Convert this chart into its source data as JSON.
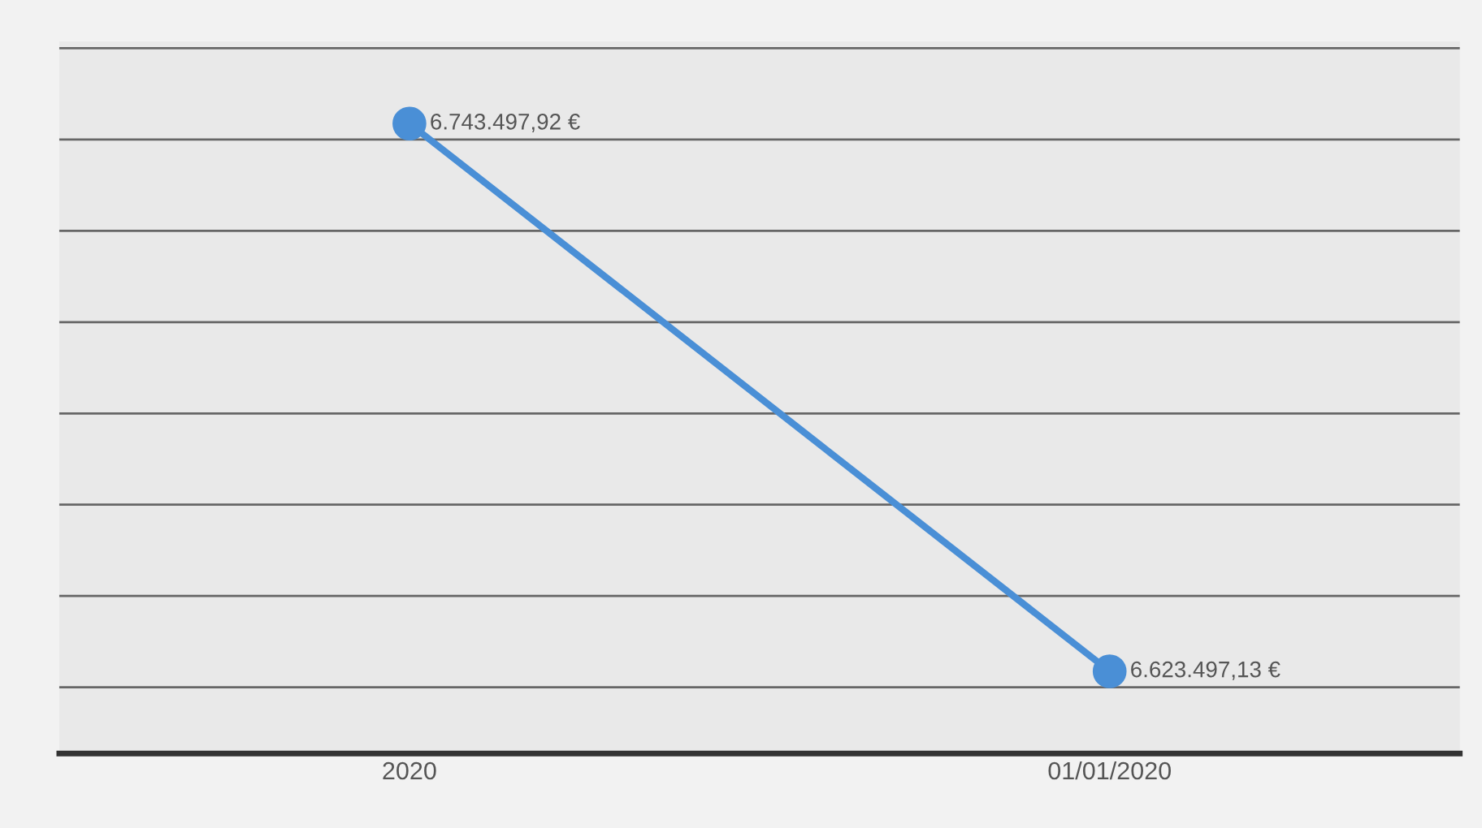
{
  "chart_data": {
    "type": "line",
    "categories": [
      "2020",
      "01/01/2020"
    ],
    "series": [
      {
        "color": "#4a8fd6",
        "values": [
          6743497.92,
          6623497.13
        ],
        "value_labels": [
          "6.743.497,92 €",
          "6.623.497,13 €"
        ]
      }
    ],
    "tick_labels": "x",
    "grid": "y",
    "marker": "circle",
    "line_style": "solid",
    "legend": false
  }
}
